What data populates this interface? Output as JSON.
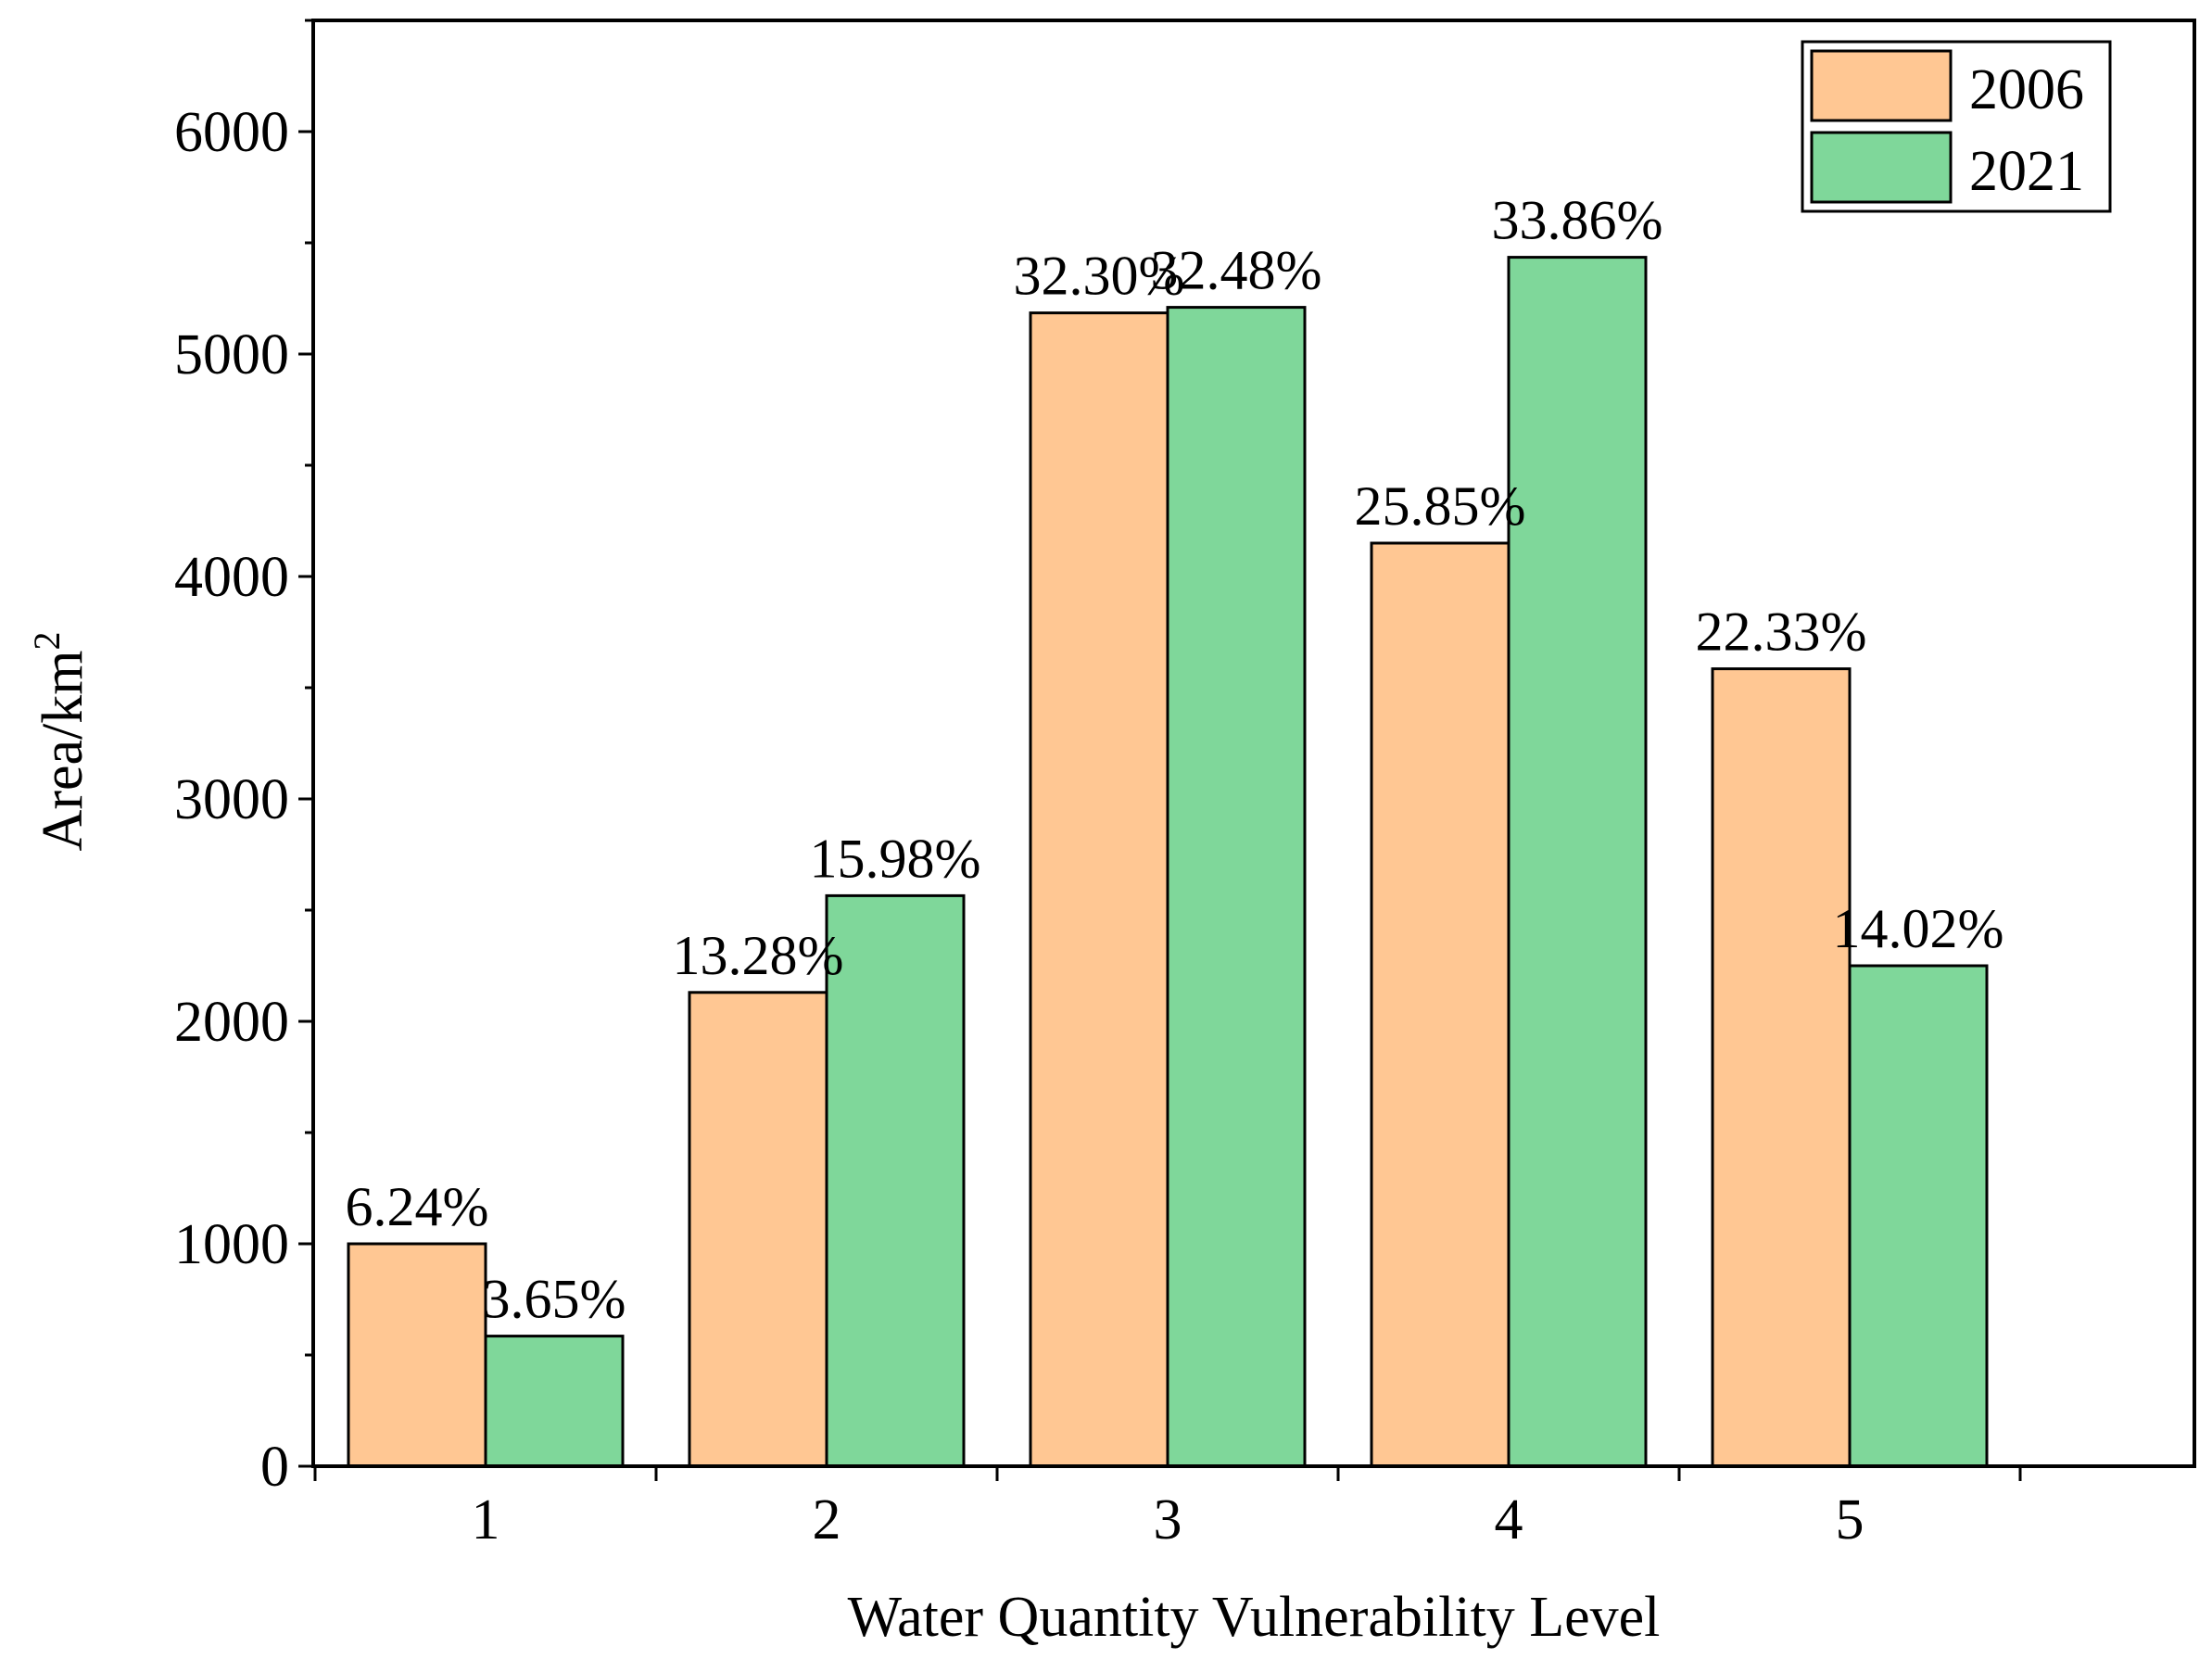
{
  "chart_data": {
    "type": "bar",
    "title": "",
    "xlabel": "Water Quantity Vulnerability Level",
    "ylabel_main": "Area/km",
    "ylabel_sup": "2",
    "categories": [
      "1",
      "2",
      "3",
      "4",
      "5"
    ],
    "ylim": [
      0,
      6500
    ],
    "yticks": [
      0,
      1000,
      2000,
      3000,
      4000,
      5000,
      6000
    ],
    "grid": false,
    "legend_position": "top-right",
    "series": [
      {
        "name": "2006",
        "color": "#FFC793",
        "values": [
          1000,
          2130,
          5185,
          4150,
          3585
        ],
        "labels": [
          "6.24%",
          "13.28%",
          "32.30%",
          "25.85%",
          "22.33%"
        ]
      },
      {
        "name": "2021",
        "color": "#7FD79A",
        "values": [
          585,
          2565,
          5210,
          5435,
          2250
        ],
        "labels": [
          "3.65%",
          "15.98%",
          "32.48%",
          "33.86%",
          "14.02%"
        ]
      }
    ]
  }
}
